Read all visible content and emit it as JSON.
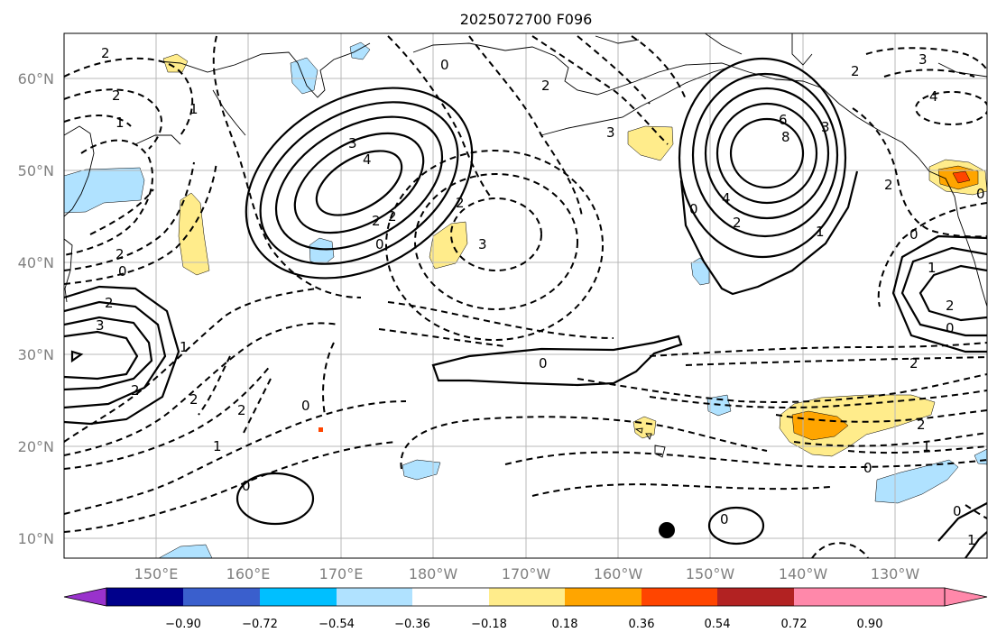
{
  "map": {
    "title": "2025072700 F096",
    "lat_labels": [
      "60°N",
      "50°N",
      "40°N",
      "30°N",
      "20°N",
      "10°N"
    ],
    "lon_labels": [
      "150°E",
      "160°E",
      "170°E",
      "180°W",
      "170°W",
      "160°W",
      "150°W",
      "140°W",
      "130°W"
    ],
    "contour_labels": [
      "2",
      "1",
      "2",
      "2",
      "0",
      "3",
      "4",
      "3",
      "2",
      "2",
      "0",
      "2",
      "0",
      "3",
      "2",
      "3",
      "6",
      "8",
      "4",
      "2",
      "0",
      "1",
      "3",
      "4",
      "2",
      "2",
      "0",
      "1",
      "2",
      "0",
      "2",
      "3",
      "2",
      "1",
      "2",
      "2",
      "0",
      "0",
      "1",
      "2",
      "0",
      "2",
      "1",
      "0",
      "0",
      "0",
      "0",
      "1",
      "1"
    ],
    "colorbar": {
      "ticks": [
        "−0.90",
        "−0.72",
        "−0.54",
        "−0.36",
        "−0.18",
        "0.18",
        "0.36",
        "0.54",
        "0.72",
        "0.90"
      ],
      "colors": [
        "#9932cc",
        "#00008b",
        "#3a5fcd",
        "#00bfff",
        "#b0e2ff",
        "#ffffff",
        "#ffec8b",
        "#ffa500",
        "#ff4500",
        "#b22222",
        "#ff88aa"
      ]
    },
    "colors": {
      "pos_light": "#ffec8b",
      "pos_mid": "#ffa500",
      "pos_strong": "#ff4500",
      "neg_light": "#b0e2ff"
    },
    "marker": "black-dot"
  }
}
